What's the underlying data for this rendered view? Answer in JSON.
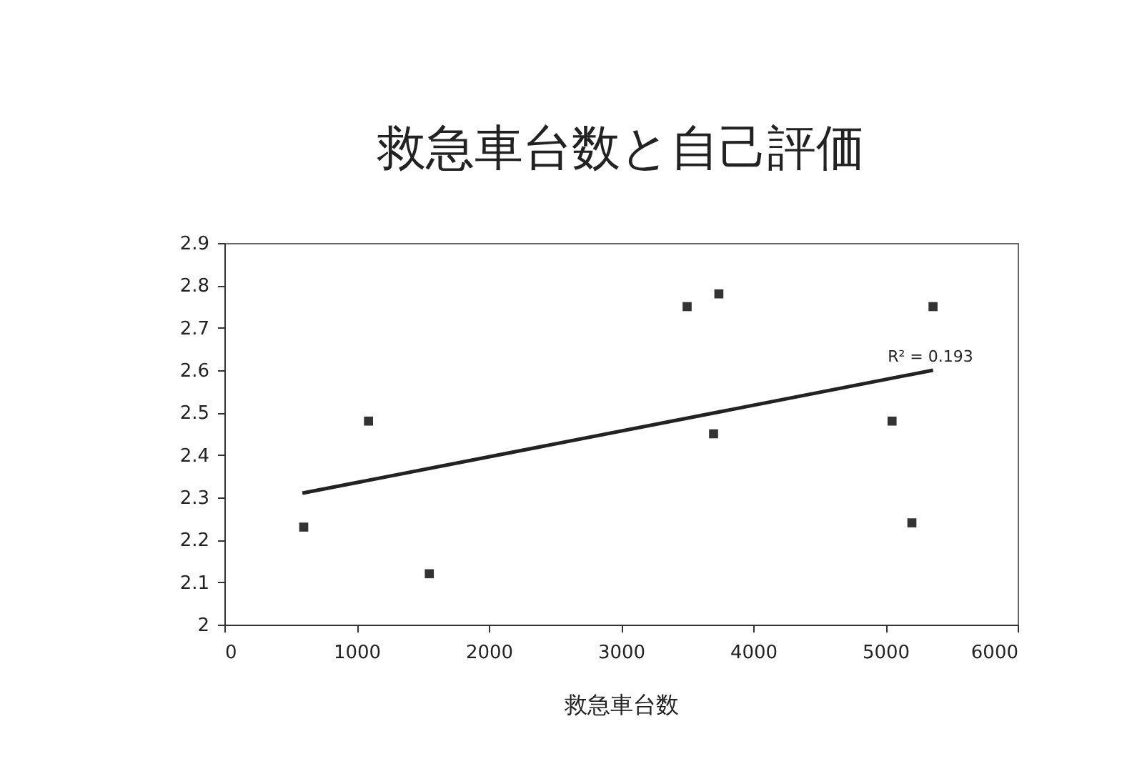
{
  "chart_data": {
    "type": "scatter",
    "title": "救急車台数と自己評価",
    "xlabel": "救急車台数",
    "xlim": [
      0,
      6000
    ],
    "xticks": [
      0,
      1000,
      2000,
      3000,
      4000,
      5000,
      6000
    ],
    "ylim": [
      2,
      2.9
    ],
    "yticks": [
      2,
      2.1,
      2.2,
      2.3,
      2.4,
      2.5,
      2.6,
      2.7,
      2.8,
      2.9
    ],
    "marker": "square",
    "grid": false,
    "series": [
      {
        "color": "#333333",
        "x": [
          600,
          1090,
          1550,
          3500,
          3740,
          3700,
          5050,
          5200,
          5360
        ],
        "values": [
          2.23,
          2.48,
          2.12,
          2.75,
          2.78,
          2.45,
          2.48,
          2.24,
          2.75
        ]
      },
      {
        "type": "line",
        "marker": "none",
        "color": "#222222",
        "x": [
          590,
          5360
        ],
        "values": [
          2.31,
          2.6
        ]
      }
    ],
    "annotations": [
      "R² = 0.193"
    ]
  }
}
